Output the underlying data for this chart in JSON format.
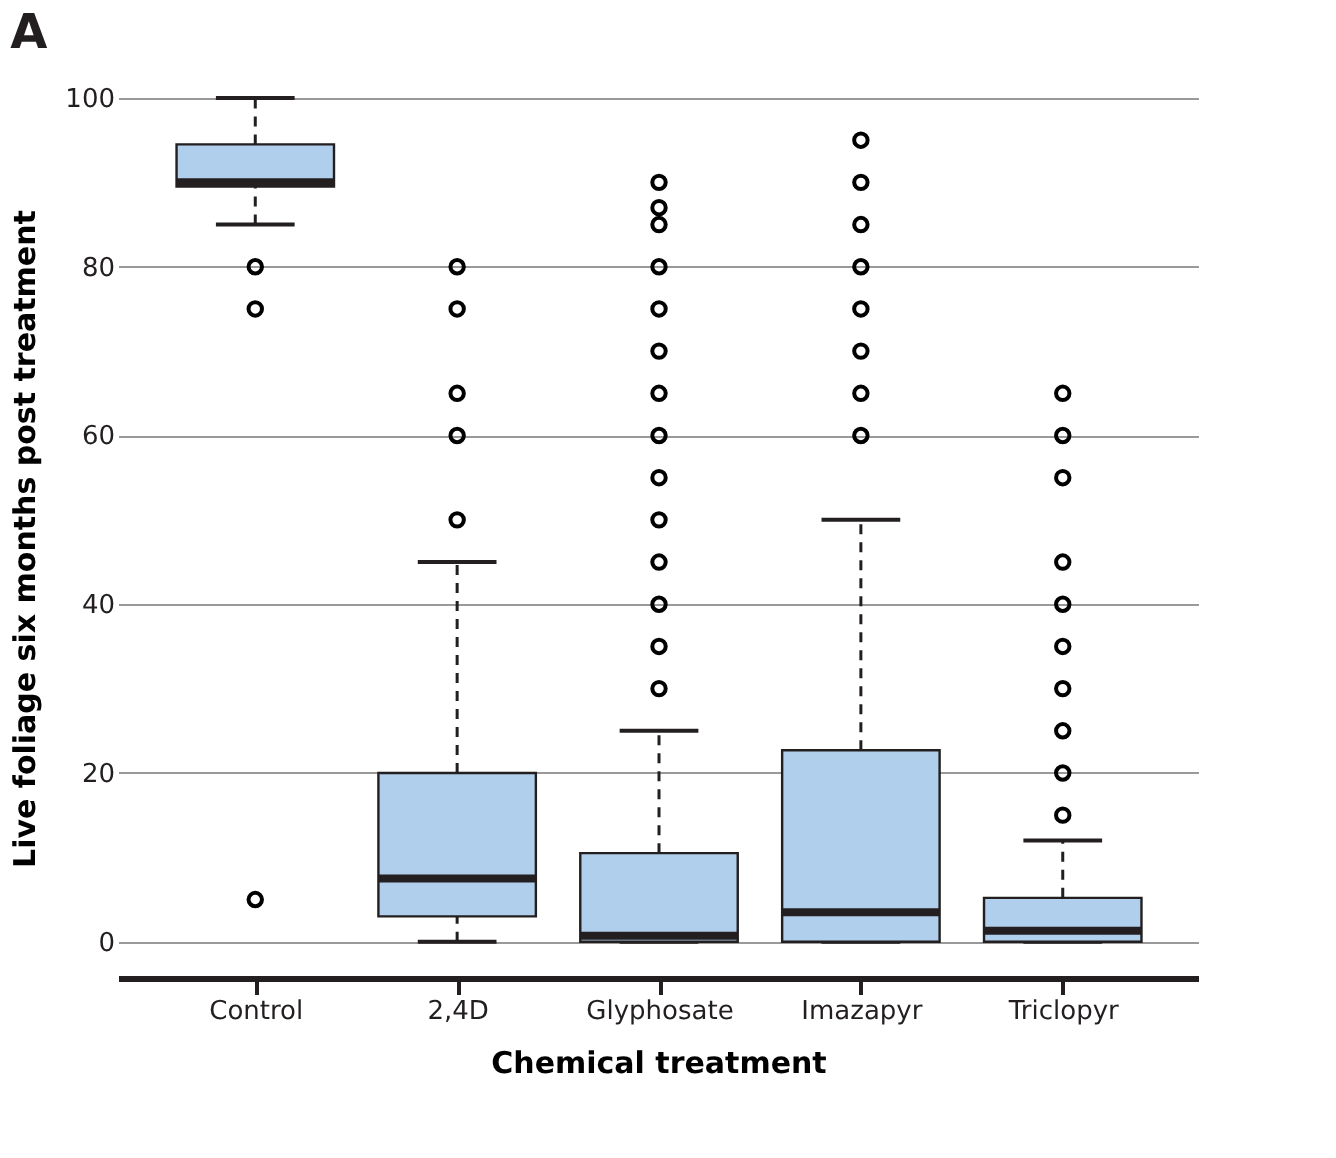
{
  "chart_data": {
    "type": "box",
    "title": "A",
    "xlabel": "Chemical treatment",
    "ylabel": "Live foliage six months post treatment",
    "categories": [
      "Control",
      "2,4D",
      "Glyphosate",
      "Imazapyr",
      "Triclopyr"
    ],
    "color": "#b0cfed",
    "boxes": [
      {
        "low": 85,
        "q1": 89.5,
        "median": 90,
        "q3": 94.5,
        "high": 100,
        "outliers": [
          80,
          75,
          5
        ]
      },
      {
        "low": 0,
        "q1": 3,
        "median": 7.5,
        "q3": 20,
        "high": 45,
        "outliers": [
          50,
          60,
          65,
          75,
          80
        ]
      },
      {
        "low": 0,
        "q1": 0,
        "median": 0.7,
        "q3": 10.5,
        "high": 25,
        "outliers": [
          30,
          35,
          40,
          45,
          50,
          55,
          60,
          65,
          70,
          75,
          80,
          85,
          87,
          90
        ]
      },
      {
        "low": 0,
        "q1": 0,
        "median": 3.5,
        "q3": 22.7,
        "high": 50,
        "outliers": [
          60,
          65,
          70,
          75,
          80,
          85,
          90,
          95
        ]
      },
      {
        "low": 0,
        "q1": 0,
        "median": 1.3,
        "q3": 5.2,
        "high": 12,
        "outliers": [
          15,
          20,
          25,
          30,
          35,
          40,
          45,
          55,
          60,
          65
        ]
      }
    ],
    "ylim": [
      -4.3,
      100
    ],
    "yticks": [
      0,
      20,
      40,
      60,
      80,
      100
    ],
    "grid": "y"
  }
}
